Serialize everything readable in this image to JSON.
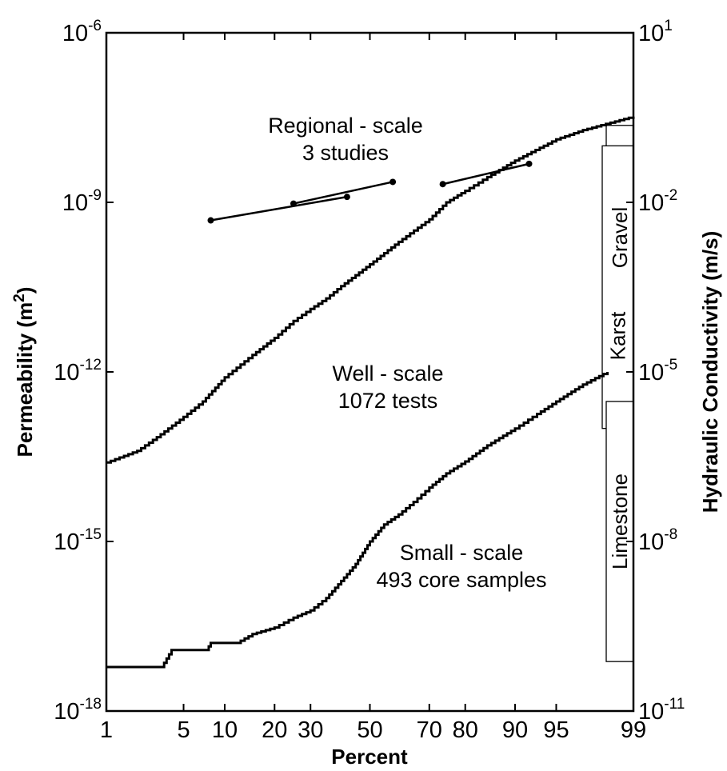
{
  "chart_data": {
    "type": "line",
    "title": "",
    "xlabel": "Percent",
    "ylabel_left": {
      "base": "Permeability (m",
      "sup": "2",
      "tail": ")"
    },
    "ylabel_right": "Hydraulic Conductivity (m/s)",
    "x_scale": "normal-probability",
    "x_ticks": [
      1,
      5,
      10,
      20,
      30,
      50,
      70,
      80,
      90,
      95,
      99
    ],
    "x_tick_labels": [
      "1",
      "5",
      "10",
      "20",
      "30",
      "50",
      "70",
      "80",
      "90",
      "95",
      "99"
    ],
    "xlim": [
      1,
      99
    ],
    "y_scale": "log",
    "ylim_left": [
      1e-18,
      1e-06
    ],
    "ylim_right": [
      1e-11,
      10
    ],
    "left_ticks": [
      {
        "base": "10",
        "exp": "-6",
        "value": 1e-06
      },
      {
        "base": "10",
        "exp": "-9",
        "value": 1e-09
      },
      {
        "base": "10",
        "exp": "-12",
        "value": 1e-12
      },
      {
        "base": "10",
        "exp": "-15",
        "value": 1e-15
      },
      {
        "base": "10",
        "exp": "-18",
        "value": 1e-18
      }
    ],
    "right_ticks": [
      {
        "base": "10",
        "exp": "1",
        "value": 10
      },
      {
        "base": "10",
        "exp": "-2",
        "value": 0.01
      },
      {
        "base": "10",
        "exp": "-5",
        "value": 1e-05
      },
      {
        "base": "10",
        "exp": "-8",
        "value": 1e-08
      },
      {
        "base": "10",
        "exp": "-11",
        "value": 1e-11
      }
    ],
    "series": [
      {
        "key": "well",
        "label_lines": [
          "Well - scale",
          "1072 tests"
        ],
        "style": "step",
        "points": [
          [
            1,
            2.5e-14
          ],
          [
            2,
            4e-14
          ],
          [
            3,
            7e-14
          ],
          [
            5,
            1.6e-13
          ],
          [
            7,
            3e-13
          ],
          [
            10,
            8e-13
          ],
          [
            15,
            2e-12
          ],
          [
            20,
            4e-12
          ],
          [
            25,
            8e-12
          ],
          [
            30,
            1.3e-11
          ],
          [
            35,
            2e-11
          ],
          [
            40,
            3.3e-11
          ],
          [
            50,
            8e-11
          ],
          [
            60,
            2e-10
          ],
          [
            70,
            5e-10
          ],
          [
            75,
            1e-09
          ],
          [
            80,
            1.6e-09
          ],
          [
            85,
            2.8e-09
          ],
          [
            90,
            5.5e-09
          ],
          [
            95,
            1.3e-08
          ],
          [
            97,
            1.9e-08
          ],
          [
            99,
            3.3e-08
          ]
        ]
      },
      {
        "key": "small",
        "label_lines": [
          "Small - scale",
          "493 core samples"
        ],
        "style": "step",
        "points": [
          [
            1,
            6e-18
          ],
          [
            3.3,
            6e-18
          ],
          [
            4,
            1.2e-17
          ],
          [
            7.5,
            1.2e-17
          ],
          [
            8,
            1.6e-17
          ],
          [
            12,
            1.6e-17
          ],
          [
            15,
            2.3e-17
          ],
          [
            20,
            3e-17
          ],
          [
            25,
            4.5e-17
          ],
          [
            30,
            6e-17
          ],
          [
            35,
            1e-16
          ],
          [
            40,
            2e-16
          ],
          [
            45,
            4e-16
          ],
          [
            50,
            1e-15
          ],
          [
            55,
            2e-15
          ],
          [
            60,
            3e-15
          ],
          [
            65,
            5e-15
          ],
          [
            70,
            9e-15
          ],
          [
            75,
            1.6e-14
          ],
          [
            80,
            2.6e-14
          ],
          [
            85,
            5e-14
          ],
          [
            90,
            1e-13
          ],
          [
            93,
            1.8e-13
          ],
          [
            95,
            3e-13
          ],
          [
            97,
            6e-13
          ],
          [
            98.2,
            1e-12
          ]
        ]
      },
      {
        "key": "regional",
        "label_lines": [
          "Regional - scale",
          "3 studies"
        ],
        "style": "segments",
        "segments": [
          [
            [
              8,
              4.8e-10
            ],
            [
              42,
              1.25e-09
            ]
          ],
          [
            [
              25,
              9.5e-10
            ],
            [
              58,
              2.3e-09
            ]
          ],
          [
            [
              74,
              2.1e-09
            ],
            [
              92,
              4.8e-09
            ]
          ]
        ]
      }
    ],
    "ranges": [
      {
        "label": "Gravel",
        "from": 3e-10,
        "to": 2.3e-08
      },
      {
        "label": "Karst",
        "from": 1e-13,
        "to": 1e-08
      },
      {
        "label": "Limestone",
        "from": 7.5e-18,
        "to": 3e-13
      }
    ]
  }
}
